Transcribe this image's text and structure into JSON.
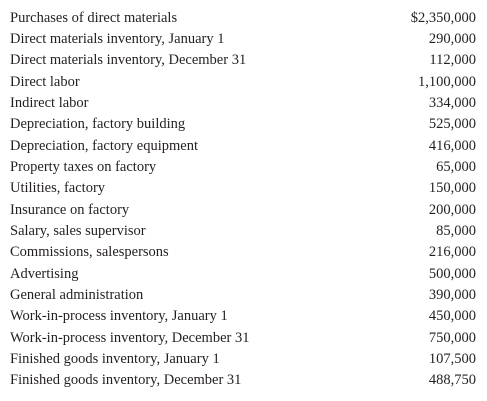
{
  "table": {
    "rows": [
      [
        "Purchases of direct materials",
        "$2,350,000"
      ],
      [
        "Direct materials inventory, January 1",
        "290,000"
      ],
      [
        "Direct materials inventory, December 31",
        "112,000"
      ],
      [
        "Direct labor",
        "1,100,000"
      ],
      [
        "Indirect labor",
        "334,000"
      ],
      [
        "Depreciation, factory building",
        "525,000"
      ],
      [
        "Depreciation, factory equipment",
        "416,000"
      ],
      [
        "Property taxes on factory",
        "65,000"
      ],
      [
        "Utilities, factory",
        "150,000"
      ],
      [
        "Insurance on factory",
        "200,000"
      ],
      [
        "Salary, sales supervisor",
        "85,000"
      ],
      [
        "Commissions, salespersons",
        "216,000"
      ],
      [
        "Advertising",
        "500,000"
      ],
      [
        "General administration",
        "390,000"
      ],
      [
        "Work-in-process inventory, January 1",
        "450,000"
      ],
      [
        "Work-in-process inventory, December 31",
        "750,000"
      ],
      [
        "Finished goods inventory, January 1",
        "107,500"
      ],
      [
        "Finished goods inventory, December 31",
        "488,750"
      ]
    ]
  }
}
